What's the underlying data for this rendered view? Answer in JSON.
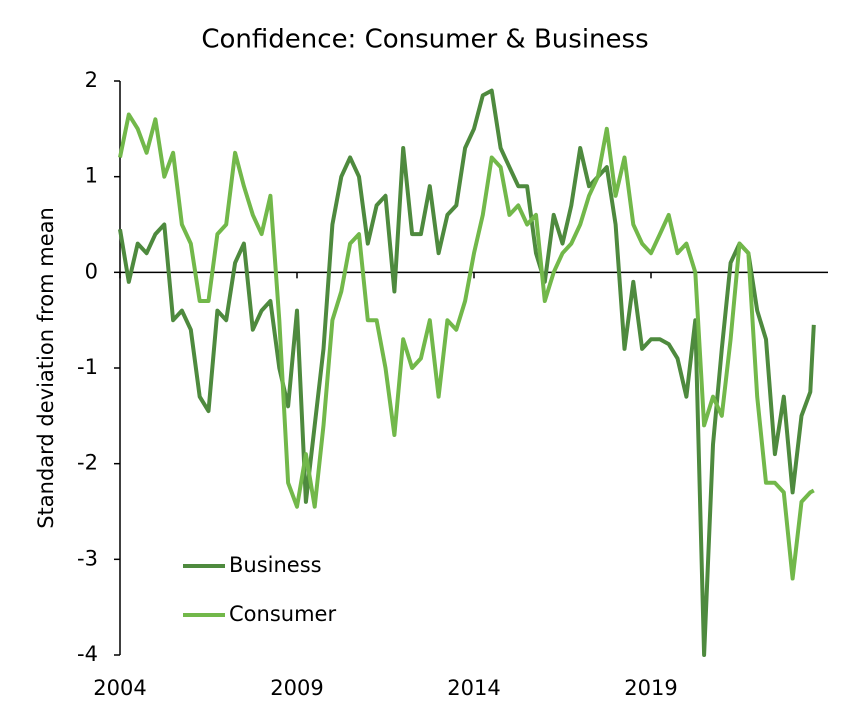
{
  "chart_data": {
    "type": "line",
    "title": "Confidence: Consumer & Business",
    "y_label": "Standard deviation from mean",
    "x": [
      2004.0,
      2004.25,
      2004.5,
      2004.75,
      2005.0,
      2005.25,
      2005.5,
      2005.75,
      2006.0,
      2006.25,
      2006.5,
      2006.75,
      2007.0,
      2007.25,
      2007.5,
      2007.75,
      2008.0,
      2008.25,
      2008.5,
      2008.75,
      2009.0,
      2009.25,
      2009.5,
      2009.75,
      2010.0,
      2010.25,
      2010.5,
      2010.75,
      2011.0,
      2011.25,
      2011.5,
      2011.75,
      2012.0,
      2012.25,
      2012.5,
      2012.75,
      2013.0,
      2013.25,
      2013.5,
      2013.75,
      2014.0,
      2014.25,
      2014.5,
      2014.75,
      2015.0,
      2015.25,
      2015.5,
      2015.75,
      2016.0,
      2016.25,
      2016.5,
      2016.75,
      2017.0,
      2017.25,
      2017.5,
      2017.75,
      2018.0,
      2018.25,
      2018.5,
      2018.75,
      2019.0,
      2019.25,
      2019.5,
      2019.75,
      2020.0,
      2020.25,
      2020.5,
      2020.75,
      2021.0,
      2021.25,
      2021.5,
      2021.75,
      2022.0,
      2022.25,
      2022.5,
      2022.75,
      2023.0,
      2023.25,
      2023.5,
      2023.6
    ],
    "series": [
      {
        "name": "Business",
        "color": "#4e8a3e",
        "values": [
          0.45,
          -0.1,
          0.3,
          0.2,
          0.4,
          0.5,
          -0.5,
          -0.4,
          -0.6,
          -1.3,
          -1.45,
          -0.4,
          -0.5,
          0.1,
          0.3,
          -0.6,
          -0.4,
          -0.3,
          -1.0,
          -1.4,
          -0.4,
          -2.4,
          -1.6,
          -0.8,
          0.5,
          1.0,
          1.2,
          1.0,
          0.3,
          0.7,
          0.8,
          -0.2,
          1.3,
          0.4,
          0.4,
          0.9,
          0.2,
          0.6,
          0.7,
          1.3,
          1.5,
          1.85,
          1.9,
          1.3,
          1.1,
          0.9,
          0.9,
          0.2,
          -0.1,
          0.6,
          0.3,
          0.7,
          1.3,
          0.9,
          1.0,
          1.1,
          0.5,
          -0.8,
          -0.1,
          -0.8,
          -0.7,
          -0.7,
          -0.75,
          -0.9,
          -1.3,
          -0.5,
          -4.0,
          -1.8,
          -0.8,
          0.1,
          0.3,
          0.2,
          -0.4,
          -0.7,
          -1.9,
          -1.3,
          -2.3,
          -1.5,
          -1.25,
          -0.55
        ]
      },
      {
        "name": "Consumer",
        "color": "#72b84a",
        "values": [
          1.2,
          1.65,
          1.5,
          1.25,
          1.6,
          1.0,
          1.25,
          0.5,
          0.3,
          -0.3,
          -0.3,
          0.4,
          0.5,
          1.25,
          0.9,
          0.6,
          0.4,
          0.8,
          -0.5,
          -2.2,
          -2.45,
          -1.9,
          -2.45,
          -1.6,
          -0.5,
          -0.2,
          0.3,
          0.4,
          -0.5,
          -0.5,
          -1.0,
          -1.7,
          -0.7,
          -1.0,
          -0.9,
          -0.5,
          -1.3,
          -0.5,
          -0.6,
          -0.3,
          0.2,
          0.6,
          1.2,
          1.1,
          0.6,
          0.7,
          0.5,
          0.6,
          -0.3,
          0.0,
          0.2,
          0.3,
          0.5,
          0.8,
          1.0,
          1.5,
          0.8,
          1.2,
          0.5,
          0.3,
          0.2,
          0.4,
          0.6,
          0.2,
          0.3,
          0.0,
          -1.6,
          -1.3,
          -1.5,
          -0.7,
          0.3,
          0.2,
          -1.3,
          -2.2,
          -2.2,
          -2.3,
          -3.2,
          -2.4,
          -2.3,
          -2.28
        ]
      }
    ],
    "xlim": [
      2004,
      2024
    ],
    "xticks": [
      2004,
      2009,
      2014,
      2019
    ],
    "ylim": [
      -4,
      2
    ],
    "yticks": [
      -4,
      -3,
      -2,
      -1,
      0,
      1,
      2
    ],
    "grid": false,
    "legend": "lower left"
  }
}
